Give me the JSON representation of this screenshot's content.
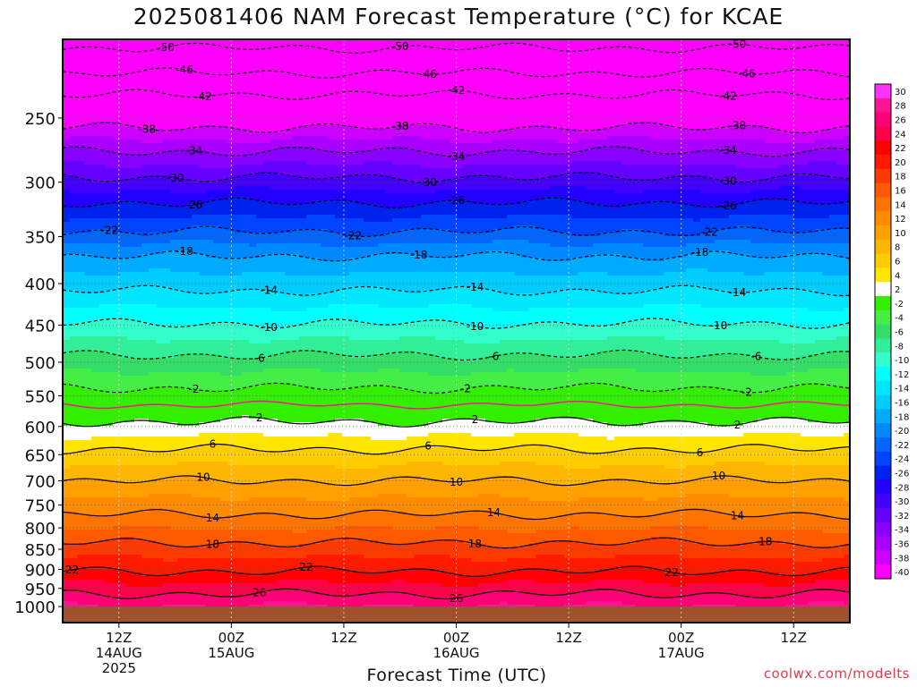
{
  "title": "2025081406 NAM Forecast Temperature (°C) for KCAE",
  "x_axis_title": "Forecast Time (UTC)",
  "credit": "coolwx.com/modelts",
  "chart_data": {
    "type": "heatmap",
    "title": "2025081406 NAM Forecast Temperature (°C) for KCAE",
    "xlabel": "Forecast Time (UTC)",
    "ylabel": "",
    "x_range_hours": [
      6,
      90
    ],
    "x_ticks": [
      {
        "hour": 12,
        "lines": [
          "12Z",
          "14AUG",
          "2025"
        ]
      },
      {
        "hour": 24,
        "lines": [
          "00Z",
          "15AUG"
        ]
      },
      {
        "hour": 36,
        "lines": [
          "12Z"
        ]
      },
      {
        "hour": 48,
        "lines": [
          "00Z",
          "16AUG"
        ]
      },
      {
        "hour": 60,
        "lines": [
          "12Z"
        ]
      },
      {
        "hour": 72,
        "lines": [
          "00Z",
          "17AUG"
        ]
      },
      {
        "hour": 84,
        "lines": [
          "12Z"
        ]
      }
    ],
    "y_ticks_hpa": [
      250,
      300,
      350,
      400,
      450,
      500,
      550,
      600,
      650,
      700,
      750,
      800,
      850,
      900,
      950,
      1000
    ],
    "y_range_hpa": [
      200,
      1000
    ],
    "y_scale": "log-pressure (inverted)",
    "colorbar_labels": [
      30,
      28,
      26,
      24,
      22,
      20,
      18,
      16,
      14,
      12,
      10,
      8,
      6,
      4,
      2,
      -2,
      -4,
      -6,
      -8,
      -10,
      -12,
      -14,
      -16,
      -18,
      -20,
      -22,
      -24,
      -26,
      -28,
      -30,
      -32,
      -34,
      -36,
      -38,
      -40
    ],
    "colorbar_colors": [
      "#ff33ff",
      "#ff1493",
      "#ff0077",
      "#ff0048",
      "#ff0000",
      "#ff1a00",
      "#ff3a00",
      "#ff5a00",
      "#ff7400",
      "#ff8c00",
      "#ffa000",
      "#ffb600",
      "#ffcc00",
      "#ffe600",
      "#ffffff",
      "#33ee00",
      "#44ee44",
      "#33dd66",
      "#33ee99",
      "#33ffcc",
      "#00ffff",
      "#00e6ff",
      "#00ccff",
      "#00aaff",
      "#0088ff",
      "#0066ff",
      "#0044ff",
      "#0022ee",
      "#2200ff",
      "#4400ff",
      "#6600ff",
      "#8800ff",
      "#aa00ff",
      "#cc00ff",
      "#ff00ff"
    ],
    "zero_contour_color": "#ff1493",
    "surface_color": "#a0522d",
    "grid": true,
    "contour_levels": [
      {
        "temp": -50,
        "pressure_hpa": 205,
        "labels_at_hours": [
          17,
          42,
          78
        ]
      },
      {
        "temp": -46,
        "pressure_hpa": 220,
        "labels_at_hours": [
          19,
          45,
          79
        ]
      },
      {
        "temp": -42,
        "pressure_hpa": 234,
        "labels_at_hours": [
          21,
          48,
          77
        ]
      },
      {
        "temp": -38,
        "pressure_hpa": 257,
        "labels_at_hours": [
          15,
          42,
          78
        ]
      },
      {
        "temp": -34,
        "pressure_hpa": 275,
        "labels_at_hours": [
          20,
          48,
          77
        ]
      },
      {
        "temp": -30,
        "pressure_hpa": 296,
        "labels_at_hours": [
          18,
          45,
          77
        ]
      },
      {
        "temp": -26,
        "pressure_hpa": 318,
        "labels_at_hours": [
          20,
          48,
          77
        ]
      },
      {
        "temp": -22,
        "pressure_hpa": 345,
        "labels_at_hours": [
          11,
          37,
          75
        ]
      },
      {
        "temp": -18,
        "pressure_hpa": 370,
        "labels_at_hours": [
          19,
          44,
          74
        ]
      },
      {
        "temp": -14,
        "pressure_hpa": 408,
        "labels_at_hours": [
          28,
          50,
          78
        ]
      },
      {
        "temp": -10,
        "pressure_hpa": 448,
        "labels_at_hours": [
          28,
          50,
          76
        ]
      },
      {
        "temp": -6,
        "pressure_hpa": 490,
        "labels_at_hours": [
          27,
          52,
          80
        ]
      },
      {
        "temp": -2,
        "pressure_hpa": 538,
        "labels_at_hours": [
          20,
          49,
          79
        ]
      },
      {
        "temp": 2,
        "pressure_hpa": 592,
        "labels_at_hours": [
          27,
          50,
          78
        ]
      },
      {
        "temp": 6,
        "pressure_hpa": 640,
        "labels_at_hours": [
          22,
          45,
          74
        ]
      },
      {
        "temp": 10,
        "pressure_hpa": 700,
        "labels_at_hours": [
          21,
          48,
          76
        ]
      },
      {
        "temp": 14,
        "pressure_hpa": 770,
        "labels_at_hours": [
          22,
          52,
          78
        ]
      },
      {
        "temp": 18,
        "pressure_hpa": 835,
        "labels_at_hours": [
          22,
          50,
          81
        ]
      },
      {
        "temp": 22,
        "pressure_hpa": 905,
        "labels_at_hours": [
          7,
          32,
          71
        ]
      },
      {
        "temp": 26,
        "pressure_hpa": 965,
        "labels_at_hours": [
          27,
          48
        ]
      }
    ]
  }
}
